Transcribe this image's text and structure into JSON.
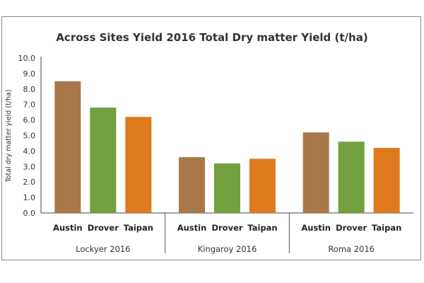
{
  "chart_data": {
    "type": "bar",
    "title": "Across Sites Yield 2016 Total Dry matter Yield (t/ha)",
    "ylabel": "Total dry matter yield (t/ha)",
    "xlabel": "",
    "ylim": [
      0,
      10
    ],
    "yticks": [
      "0.0",
      "1.0",
      "2.0",
      "3.0",
      "4.0",
      "5.0",
      "6.0",
      "7.0",
      "8.0",
      "9.0",
      "10.0"
    ],
    "groups": [
      {
        "label": "Lockyer 2016",
        "bars": [
          {
            "name": "Austin",
            "value": 8.5
          },
          {
            "name": "Drover",
            "value": 6.8
          },
          {
            "name": "Taipan",
            "value": 6.2
          }
        ]
      },
      {
        "label": "Kingaroy 2016",
        "bars": [
          {
            "name": "Austin",
            "value": 3.6
          },
          {
            "name": "Drover",
            "value": 3.2
          },
          {
            "name": "Taipan",
            "value": 3.5
          }
        ]
      },
      {
        "label": "Roma 2016",
        "bars": [
          {
            "name": "Austin",
            "value": 5.2
          },
          {
            "name": "Drover",
            "value": 4.6
          },
          {
            "name": "Taipan",
            "value": 4.2
          }
        ]
      }
    ],
    "colors": {
      "Austin": "#a8784a",
      "Drover": "#72a03e",
      "Taipan": "#e07a1e"
    },
    "grid": false,
    "legend": "none"
  }
}
